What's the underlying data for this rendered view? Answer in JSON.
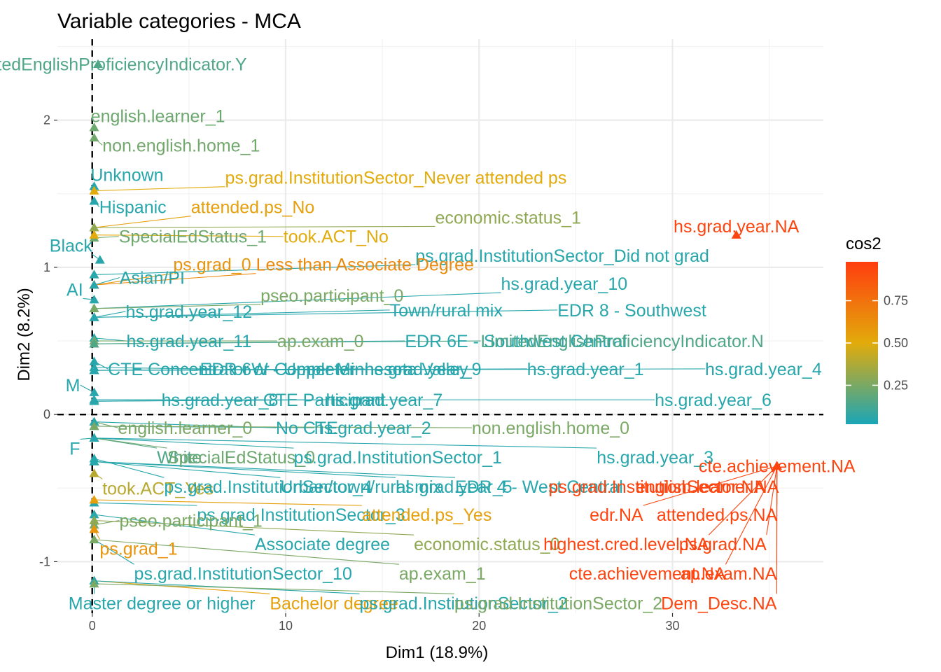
{
  "chart_data": {
    "type": "scatter",
    "title": "Variable categories - MCA",
    "xlabel": "Dim1 (18.9%)",
    "ylabel": "Dim2 (8.2%)",
    "xlim": [
      -1.8,
      37.8
    ],
    "ylim": [
      -1.35,
      2.55
    ],
    "x_ticks": [
      {
        "v": 0,
        "label": "0"
      },
      {
        "v": 10,
        "label": "10"
      },
      {
        "v": 20,
        "label": "20"
      },
      {
        "v": 30,
        "label": "30"
      }
    ],
    "y_ticks": [
      {
        "v": -1,
        "label": "-1"
      },
      {
        "v": 0,
        "label": "0"
      },
      {
        "v": 1,
        "label": "1"
      },
      {
        "v": 2,
        "label": "2"
      }
    ],
    "grid": true,
    "reference_lines": {
      "x": 0,
      "y": 0,
      "style": "dashed"
    },
    "legend": {
      "title": "cos2",
      "position": "right",
      "type": "gradient",
      "ticks": [
        {
          "v": 0.25,
          "label": "0.25"
        },
        {
          "v": 0.5,
          "label": "0.50"
        },
        {
          "v": 0.75,
          "label": "0.75"
        }
      ],
      "range": [
        0.02,
        0.98
      ],
      "colors": [
        "#1AA6B7",
        "#E2AB0B",
        "#FF3D0F"
      ]
    },
    "points": [
      {
        "label": "LimitedEnglishProficiencyIndicator.Y",
        "x": 0.3,
        "y": 2.38,
        "lx": 0.7,
        "ly": 2.38,
        "cos2": 0.15
      },
      {
        "label": "english.learner_1",
        "x": 0.1,
        "y": 1.95,
        "lx": 3.4,
        "ly": 2.03,
        "cos2": 0.22
      },
      {
        "label": "non.english.home_1",
        "x": 0.1,
        "y": 1.88,
        "lx": 4.6,
        "ly": 1.83,
        "cos2": 0.23
      },
      {
        "label": "Unknown",
        "x": 0.1,
        "y": 1.55,
        "lx": 1.8,
        "ly": 1.63,
        "cos2": 0.05
      },
      {
        "label": "ps.grad.InstitutionSector_Never attended ps",
        "x": 0.1,
        "y": 1.52,
        "lx": 15.7,
        "ly": 1.61,
        "cos2": 0.5
      },
      {
        "label": "Hispanic",
        "x": 0.1,
        "y": 1.45,
        "lx": 2.1,
        "ly": 1.41,
        "cos2": 0.05
      },
      {
        "label": "attended.ps_No",
        "x": 0.1,
        "y": 1.27,
        "lx": 8.3,
        "ly": 1.41,
        "cos2": 0.55
      },
      {
        "label": "economic.status_1",
        "x": 0.1,
        "y": 1.27,
        "lx": 21.5,
        "ly": 1.34,
        "cos2": 0.3
      },
      {
        "label": "SpecialEdStatus_1",
        "x": 0.1,
        "y": 1.2,
        "lx": 5.2,
        "ly": 1.21,
        "cos2": 0.22
      },
      {
        "label": "took.ACT_No",
        "x": 0.1,
        "y": 1.22,
        "lx": 12.6,
        "ly": 1.21,
        "cos2": 0.5
      },
      {
        "label": "Black",
        "x": 0.4,
        "y": 1.05,
        "lx": -1.1,
        "ly": 1.15,
        "cos2": 0.05
      },
      {
        "label": "hs.grad.year.NA",
        "x": 33.3,
        "y": 1.22,
        "lx": 33.3,
        "ly": 1.28,
        "cos2": 0.95
      },
      {
        "label": "ps.grad.InstitutionSector_Did not grad",
        "x": 0.1,
        "y": 0.95,
        "lx": 24.3,
        "ly": 1.08,
        "cos2": 0.05
      },
      {
        "label": "ps.grad_0",
        "x": 0.1,
        "y": 0.88,
        "lx": 6.2,
        "ly": 1.02,
        "cos2": 0.6
      },
      {
        "label": "Less than Associate Degree",
        "x": 0.1,
        "y": 0.88,
        "lx": 14.1,
        "ly": 1.02,
        "cos2": 0.65
      },
      {
        "label": "Asian/PI",
        "x": 0.1,
        "y": 0.88,
        "lx": 3.1,
        "ly": 0.93,
        "cos2": 0.05
      },
      {
        "label": "AI",
        "x": 0.1,
        "y": 0.78,
        "lx": -0.9,
        "ly": 0.85,
        "cos2": 0.05
      },
      {
        "label": "hs.grad.year_10",
        "x": 0.1,
        "y": 0.72,
        "lx": 24.4,
        "ly": 0.89,
        "cos2": 0.05
      },
      {
        "label": "pseo.participant_0",
        "x": 0.1,
        "y": 0.72,
        "lx": 12.4,
        "ly": 0.81,
        "cos2": 0.25
      },
      {
        "label": "hs.grad.year_12",
        "x": 0.1,
        "y": 0.66,
        "lx": 5.0,
        "ly": 0.7,
        "cos2": 0.05
      },
      {
        "label": "Town/rural mix",
        "x": 0.1,
        "y": 0.66,
        "lx": 18.3,
        "ly": 0.71,
        "cos2": 0.05
      },
      {
        "label": "EDR 8 - Southwest",
        "x": 0.1,
        "y": 0.66,
        "lx": 27.9,
        "ly": 0.71,
        "cos2": 0.05
      },
      {
        "label": "hs.grad.year_11",
        "x": 0.1,
        "y": 0.52,
        "lx": 5.0,
        "ly": 0.5,
        "cos2": 0.05
      },
      {
        "label": "ap.exam_0",
        "x": 0.1,
        "y": 0.5,
        "lx": 11.8,
        "ly": 0.5,
        "cos2": 0.25
      },
      {
        "label": "EDR 6E - Southwest Central",
        "x": 0.1,
        "y": 0.48,
        "lx": 21.9,
        "ly": 0.5,
        "cos2": 0.05
      },
      {
        "label": "LimitedEnglishProficiencyIndicator.N",
        "x": 0.1,
        "y": 0.48,
        "lx": 27.4,
        "ly": 0.5,
        "cos2": 0.15
      },
      {
        "label": "CTE Concentrator or Completer",
        "x": 0.1,
        "y": 0.36,
        "lx": 7.2,
        "ly": 0.31,
        "cos2": 0.05
      },
      {
        "label": "EDR 6W - Upper Minnesota Valley",
        "x": 0.1,
        "y": 0.32,
        "lx": 12.5,
        "ly": 0.31,
        "cos2": 0.05
      },
      {
        "label": "hs.grad.year_9",
        "x": 0.1,
        "y": 0.3,
        "lx": 17.1,
        "ly": 0.31,
        "cos2": 0.05
      },
      {
        "label": "hs.grad.year_1",
        "x": 0.1,
        "y": 0.3,
        "lx": 25.5,
        "ly": 0.31,
        "cos2": 0.05
      },
      {
        "label": "hs.grad.year_4",
        "x": 0.1,
        "y": 0.3,
        "lx": 34.7,
        "ly": 0.31,
        "cos2": 0.05
      },
      {
        "label": "M",
        "x": 0.1,
        "y": 0.15,
        "lx": -1.0,
        "ly": 0.2,
        "cos2": 0.05
      },
      {
        "label": "hs.grad.year_8",
        "x": 0.1,
        "y": 0.1,
        "lx": 6.6,
        "ly": 0.1,
        "cos2": 0.05
      },
      {
        "label": "CTE Participant",
        "x": 0.1,
        "y": 0.09,
        "lx": 12.0,
        "ly": 0.1,
        "cos2": 0.05
      },
      {
        "label": "hs.grad.year_7",
        "x": 0.1,
        "y": 0.09,
        "lx": 15.1,
        "ly": 0.1,
        "cos2": 0.05
      },
      {
        "label": "hs.grad.year_6",
        "x": 0.1,
        "y": 0.1,
        "lx": 32.1,
        "ly": 0.1,
        "cos2": 0.05
      },
      {
        "label": "english.learner_0",
        "x": 0.1,
        "y": -0.05,
        "lx": 4.8,
        "ly": -0.09,
        "cos2": 0.25
      },
      {
        "label": "No CTE",
        "x": 0.1,
        "y": -0.05,
        "lx": 11.1,
        "ly": -0.09,
        "cos2": 0.05
      },
      {
        "label": "hs.grad.year_2",
        "x": 0.1,
        "y": -0.08,
        "lx": 14.5,
        "ly": -0.09,
        "cos2": 0.05
      },
      {
        "label": "non.english.home_0",
        "x": 0.1,
        "y": -0.08,
        "lx": 23.7,
        "ly": -0.09,
        "cos2": 0.25
      },
      {
        "label": "F",
        "x": 0.1,
        "y": -0.16,
        "lx": -0.9,
        "ly": -0.23,
        "cos2": 0.05
      },
      {
        "label": "White",
        "x": 0.1,
        "y": -0.16,
        "lx": 4.5,
        "ly": -0.29,
        "cos2": 0.15
      },
      {
        "label": "SpecialEdStatus_0",
        "x": 0.1,
        "y": -0.16,
        "lx": 7.7,
        "ly": -0.29,
        "cos2": 0.22
      },
      {
        "label": "ps.grad.InstitutionSector_1",
        "x": 0.1,
        "y": -0.16,
        "lx": 15.8,
        "ly": -0.29,
        "cos2": 0.05
      },
      {
        "label": "hs.grad.year_3",
        "x": 0.1,
        "y": -0.16,
        "lx": 29.1,
        "ly": -0.29,
        "cos2": 0.05
      },
      {
        "label": "cte.achievement.NA",
        "x": 35.4,
        "y": -0.35,
        "lx": 35.4,
        "ly": -0.35,
        "cos2": 0.95
      },
      {
        "label": "took.ACT_Yes",
        "x": 0.1,
        "y": -0.4,
        "lx": 3.4,
        "ly": -0.5,
        "cos2": 0.4
      },
      {
        "label": "ps.grad.InstitutionSector_4",
        "x": 0.1,
        "y": -0.3,
        "lx": 9.1,
        "ly": -0.49,
        "cos2": 0.05
      },
      {
        "label": "Urban/town/rural mix",
        "x": 0.1,
        "y": -0.32,
        "lx": 13.9,
        "ly": -0.49,
        "cos2": 0.05
      },
      {
        "label": "hs.grad.year_5",
        "x": 0.1,
        "y": -0.32,
        "lx": 18.7,
        "ly": -0.49,
        "cos2": 0.05
      },
      {
        "label": "EDR 4 - West Central",
        "x": 0.1,
        "y": -0.32,
        "lx": 23.1,
        "ly": -0.49,
        "cos2": 0.05
      },
      {
        "label": "ps.grad.InstitutionSector.NA",
        "x": 35.4,
        "y": -0.35,
        "lx": 29.2,
        "ly": -0.49,
        "cos2": 0.95
      },
      {
        "label": "english.learner.NA",
        "x": 35.4,
        "y": -0.35,
        "lx": 31.8,
        "ly": -0.49,
        "cos2": 0.95
      },
      {
        "label": "ps.grad.InstitutionSector_3",
        "x": 0.1,
        "y": -0.6,
        "lx": 10.8,
        "ly": -0.68,
        "cos2": 0.05
      },
      {
        "label": "attended.ps_Yes",
        "x": 0.1,
        "y": -0.58,
        "lx": 17.3,
        "ly": -0.68,
        "cos2": 0.55
      },
      {
        "label": "edr.NA",
        "x": 35.4,
        "y": -0.35,
        "lx": 27.1,
        "ly": -0.68,
        "cos2": 0.95
      },
      {
        "label": "attended.ps.NA",
        "x": 35.4,
        "y": -0.35,
        "lx": 32.3,
        "ly": -0.68,
        "cos2": 0.95
      },
      {
        "label": "pseo.participant_1",
        "x": 0.1,
        "y": -0.75,
        "lx": 5.1,
        "ly": -0.72,
        "cos2": 0.25
      },
      {
        "label": "Associate degree",
        "x": 0.1,
        "y": -0.68,
        "lx": 11.9,
        "ly": -0.88,
        "cos2": 0.05
      },
      {
        "label": "economic.status_0",
        "x": 0.1,
        "y": -0.72,
        "lx": 20.4,
        "ly": -0.88,
        "cos2": 0.3
      },
      {
        "label": "highest.cred.level.NA",
        "x": 35.4,
        "y": -0.35,
        "lx": 27.6,
        "ly": -0.88,
        "cos2": 0.95
      },
      {
        "label": "ps.grad.NA",
        "x": 35.4,
        "y": -0.35,
        "lx": 32.6,
        "ly": -0.88,
        "cos2": 0.95
      },
      {
        "label": "ps.grad_1",
        "x": 0.1,
        "y": -0.78,
        "lx": 2.4,
        "ly": -0.91,
        "cos2": 0.6
      },
      {
        "label": "ps.grad.InstitutionSector_10",
        "x": 0.1,
        "y": -0.85,
        "lx": 7.8,
        "ly": -1.08,
        "cos2": 0.05
      },
      {
        "label": "ap.exam_1",
        "x": 0.1,
        "y": -0.85,
        "lx": 18.1,
        "ly": -1.08,
        "cos2": 0.25
      },
      {
        "label": "cte.achievement.NA",
        "x": 35.4,
        "y": -0.35,
        "lx": 28.7,
        "ly": -1.08,
        "cos2": 0.95
      },
      {
        "label": "ap.exam.NA",
        "x": 35.4,
        "y": -0.35,
        "lx": 32.9,
        "ly": -1.08,
        "cos2": 0.95
      },
      {
        "label": "Master degree or higher",
        "x": 0.1,
        "y": -1.13,
        "lx": 3.6,
        "ly": -1.28,
        "cos2": 0.05
      },
      {
        "label": "Bachelor degree",
        "x": 0.1,
        "y": -1.13,
        "lx": 12.5,
        "ly": -1.28,
        "cos2": 0.55
      },
      {
        "label": "ps.grad.InstitutionSector_2",
        "x": 0.1,
        "y": -1.13,
        "lx": 19.2,
        "ly": -1.28,
        "cos2": 0.05
      },
      {
        "label": "ps.grad.InstitutionSector_2",
        "x": 0.1,
        "y": -1.15,
        "lx": 24.1,
        "ly": -1.28,
        "cos2": 0.25
      },
      {
        "label": "Dem_Desc.NA",
        "x": 35.4,
        "y": -0.35,
        "lx": 32.4,
        "ly": -1.28,
        "cos2": 0.95
      }
    ]
  }
}
